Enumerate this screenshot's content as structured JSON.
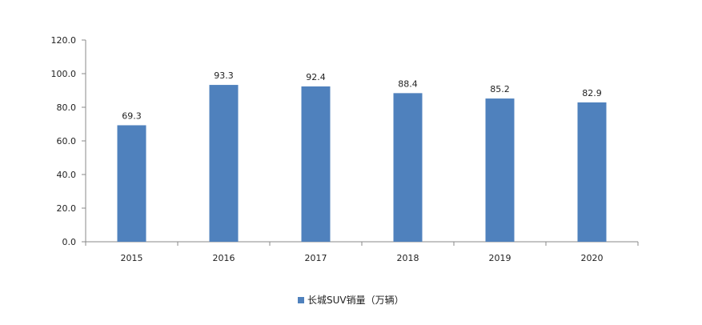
{
  "chart_data": {
    "type": "bar",
    "categories": [
      "2015",
      "2016",
      "2017",
      "2018",
      "2019",
      "2020"
    ],
    "series": [
      {
        "name": "长城SUV销量（万辆）",
        "values": [
          69.3,
          93.3,
          92.4,
          88.4,
          85.2,
          82.9
        ],
        "color": "#4f81bd"
      }
    ],
    "data_labels": [
      "69.3",
      "93.3",
      "92.4",
      "88.4",
      "85.2",
      "82.9"
    ],
    "y_ticks": [
      "0.0",
      "20.0",
      "40.0",
      "60.0",
      "80.0",
      "100.0",
      "120.0"
    ],
    "ylim": [
      0,
      120
    ],
    "grid": false,
    "legend_position": "bottom-center"
  }
}
